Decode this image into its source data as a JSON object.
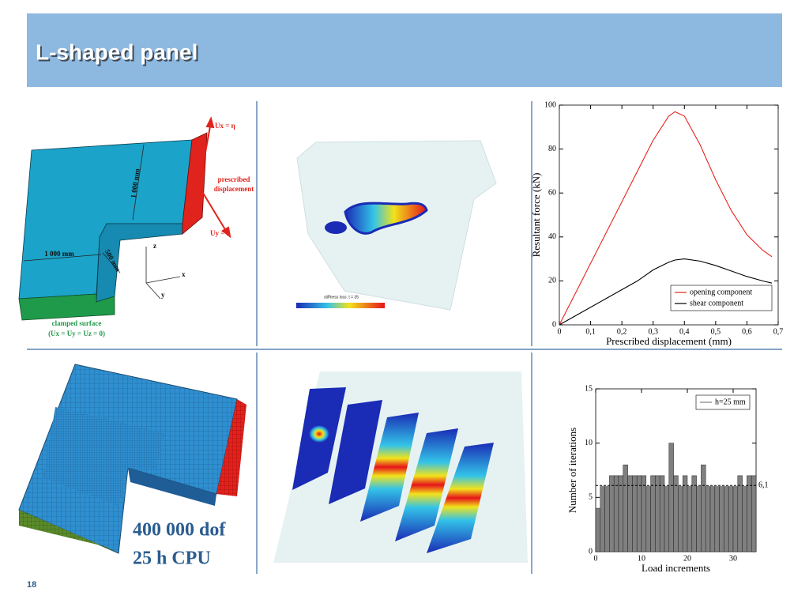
{
  "title": "L-shaped panel",
  "page_number": 18,
  "panels": {
    "geometry": {
      "load_x": "Ux = η",
      "prescribed": [
        "prescribed",
        "displacement"
      ],
      "load_y": "Uy = η",
      "dim_a": "1 000 mm",
      "dim_b": "1 000 mm",
      "dim_c": "500 mm",
      "axis_z": "z",
      "axis_x": "x",
      "axis_y": "y",
      "clamped": [
        "clamped surface",
        "(Ux = Uy = Uz = 0)"
      ]
    },
    "damage": {
      "caption": "stiffness loss: t = 35"
    },
    "mesh": {
      "stats": [
        "400 000 dof",
        "25 h CPU"
      ]
    }
  },
  "chart_data": [
    {
      "type": "line",
      "x": [
        0,
        0.05,
        0.1,
        0.15,
        0.2,
        0.25,
        0.3,
        0.35,
        0.37,
        0.4,
        0.45,
        0.5,
        0.55,
        0.6,
        0.65,
        0.68
      ],
      "series": [
        {
          "name": "opening component",
          "color": "#e8221c",
          "values": [
            0,
            14,
            28,
            42,
            56,
            70,
            84,
            95,
            97,
            95,
            82,
            66,
            52,
            41,
            34,
            31
          ]
        },
        {
          "name": "shear component",
          "color": "#000000",
          "values": [
            0,
            4,
            8,
            12,
            16,
            20,
            25,
            28.5,
            29.5,
            30,
            29,
            27,
            24.5,
            22,
            20,
            19
          ]
        }
      ],
      "xlim": [
        0,
        0.7
      ],
      "xticks": [
        0,
        {
          "value": 0.1,
          "label": "0,1"
        },
        {
          "value": 0.2,
          "label": "0,2"
        },
        {
          "value": 0.3,
          "label": "0,3"
        },
        {
          "value": 0.4,
          "label": "0,4"
        },
        {
          "value": 0.5,
          "label": "0,5"
        },
        {
          "value": 0.6,
          "label": "0,6"
        },
        {
          "value": 0.7,
          "label": "0,7"
        }
      ],
      "ylim": [
        0,
        100
      ],
      "yticks": [
        0,
        20,
        40,
        60,
        80,
        100
      ],
      "xlabel": "Prescribed displacement (mm)",
      "ylabel": "Resultant force (kN)",
      "legend": "lower right"
    },
    {
      "type": "histogram",
      "bins": [
        0,
        1,
        2,
        3,
        4,
        5,
        6,
        7,
        8,
        9,
        10,
        11,
        12,
        13,
        14,
        15,
        16,
        17,
        18,
        19,
        20,
        21,
        22,
        23,
        24,
        25,
        26,
        27,
        28,
        29,
        30,
        31,
        32,
        33,
        34,
        35
      ],
      "series": [
        {
          "name": "h=25 mm",
          "color": "#808080",
          "values": [
            4,
            6,
            6,
            7,
            7,
            7,
            8,
            7,
            7,
            7,
            7,
            6,
            7,
            7,
            7,
            6,
            10,
            7,
            6,
            7,
            6,
            7,
            6,
            8,
            6,
            6,
            6,
            6,
            6,
            6,
            6,
            7,
            6,
            7,
            7
          ]
        }
      ],
      "reference_line": {
        "value": 6.1,
        "label": "6,1"
      },
      "xlim": [
        0,
        35
      ],
      "xticks": [
        0,
        10,
        20,
        30
      ],
      "ylim": [
        0,
        15
      ],
      "yticks": [
        0,
        5,
        10,
        15
      ],
      "xlabel": "Load increments",
      "ylabel": "Number of iterations",
      "legend": "upper right"
    }
  ]
}
